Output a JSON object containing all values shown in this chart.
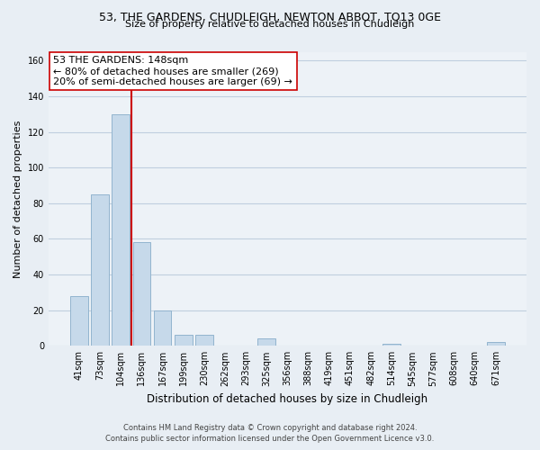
{
  "title1": "53, THE GARDENS, CHUDLEIGH, NEWTON ABBOT, TQ13 0GE",
  "title2": "Size of property relative to detached houses in Chudleigh",
  "xlabel": "Distribution of detached houses by size in Chudleigh",
  "ylabel": "Number of detached properties",
  "bar_labels": [
    "41sqm",
    "73sqm",
    "104sqm",
    "136sqm",
    "167sqm",
    "199sqm",
    "230sqm",
    "262sqm",
    "293sqm",
    "325sqm",
    "356sqm",
    "388sqm",
    "419sqm",
    "451sqm",
    "482sqm",
    "514sqm",
    "545sqm",
    "577sqm",
    "608sqm",
    "640sqm",
    "671sqm"
  ],
  "bar_values": [
    28,
    85,
    130,
    58,
    20,
    6,
    6,
    0,
    0,
    4,
    0,
    0,
    0,
    0,
    0,
    1,
    0,
    0,
    0,
    0,
    2
  ],
  "bar_color": "#c6d9ea",
  "bar_edgecolor": "#92b4ce",
  "ylim": [
    0,
    165
  ],
  "yticks": [
    0,
    20,
    40,
    60,
    80,
    100,
    120,
    140,
    160
  ],
  "vline_color": "#cc0000",
  "annotation_title": "53 THE GARDENS: 148sqm",
  "annotation_line1": "← 80% of detached houses are smaller (269)",
  "annotation_line2": "20% of semi-detached houses are larger (69) →",
  "annotation_box_color": "#ffffff",
  "annotation_box_edgecolor": "#cc0000",
  "footer1": "Contains HM Land Registry data © Crown copyright and database right 2024.",
  "footer2": "Contains public sector information licensed under the Open Government Licence v3.0.",
  "bg_color": "#e8eef4",
  "plot_bg_color": "#edf2f7",
  "grid_color": "#c0cfdf"
}
